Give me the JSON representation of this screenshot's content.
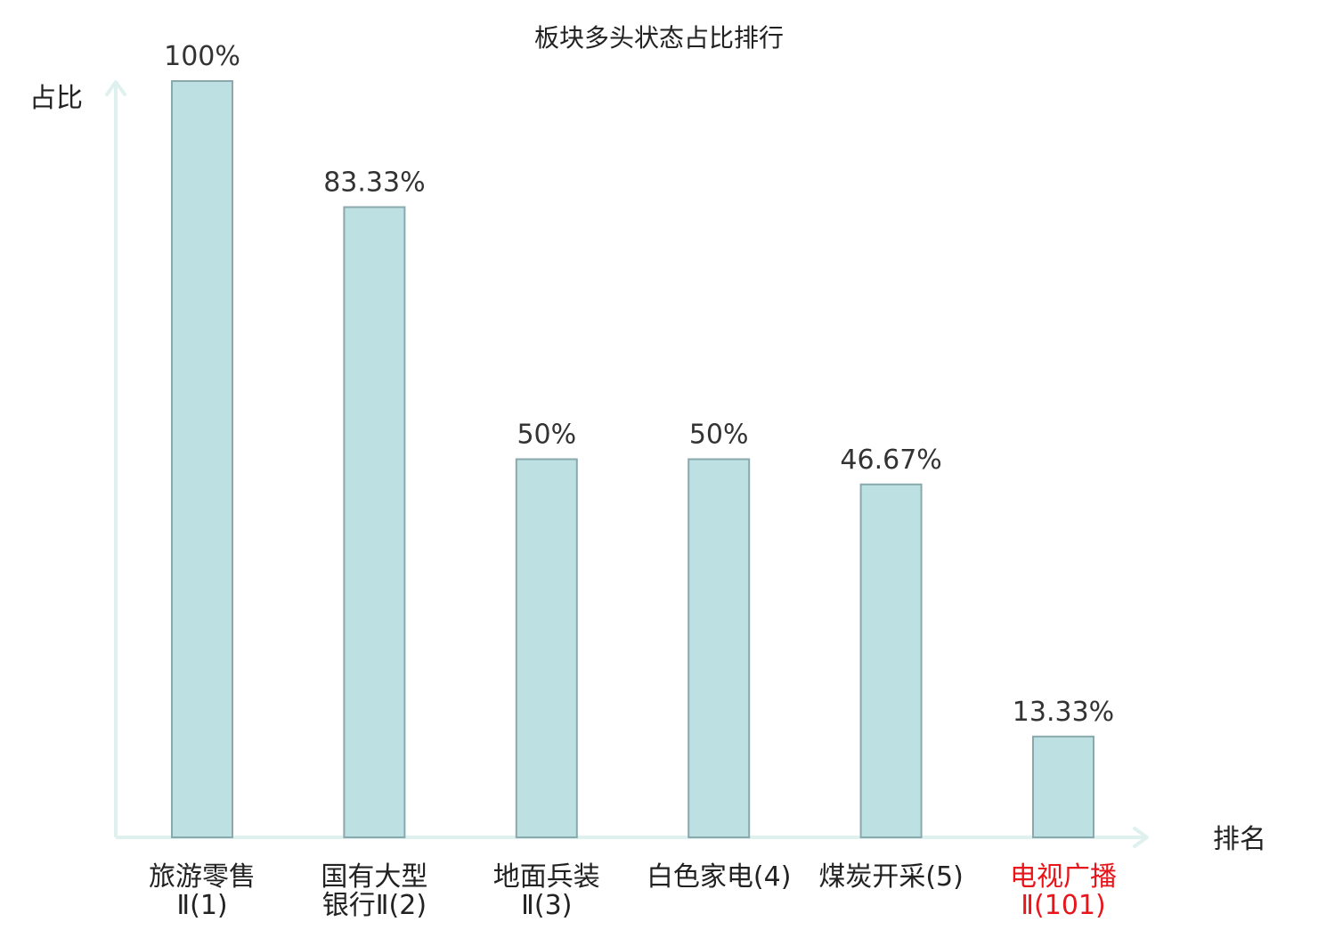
{
  "chart_data": {
    "type": "bar",
    "title": "板块多头状态占比排行",
    "ylabel": "占比",
    "xlabel": "排名",
    "ylim": [
      0,
      100
    ],
    "grid": false,
    "categories": [
      {
        "name_lines": [
          "旅游零售"
        ],
        "rank_line": "Ⅱ(1)",
        "highlight": false
      },
      {
        "name_lines": [
          "国有大型"
        ],
        "rank_line": "银行Ⅱ(2)",
        "highlight": false
      },
      {
        "name_lines": [
          "地面兵装"
        ],
        "rank_line": "Ⅱ(3)",
        "highlight": false
      },
      {
        "name_lines": [
          "白色家电(4)"
        ],
        "rank_line": "",
        "highlight": false
      },
      {
        "name_lines": [
          "煤炭开采(5)"
        ],
        "rank_line": "",
        "highlight": false
      },
      {
        "name_lines": [
          "电视广播"
        ],
        "rank_line": "Ⅱ(101)",
        "highlight": true
      }
    ],
    "values": [
      100,
      83.33,
      50,
      50,
      46.67,
      13.33
    ],
    "value_labels": [
      "100%",
      "83.33%",
      "50%",
      "50%",
      "46.67%",
      "13.33%"
    ],
    "colors": {
      "bar_fill": "#bde0e3",
      "bar_stroke": "#8aa9ad",
      "axis": "#dff1ef",
      "text": "#333333",
      "label_text": "#222222",
      "highlight": "#e8161b"
    }
  }
}
